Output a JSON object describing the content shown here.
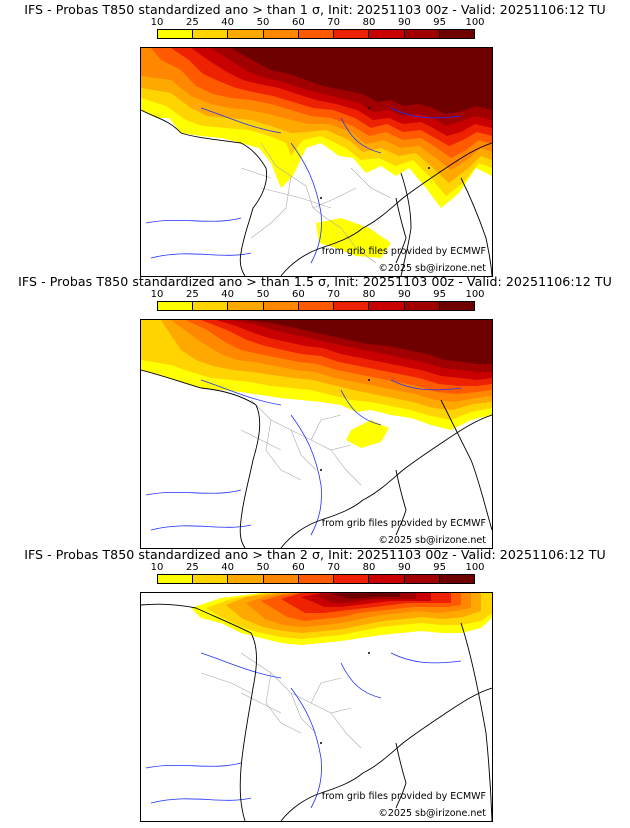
{
  "panels": [
    {
      "title": "IFS - Probas T850  standardized ano > than 1 σ, Init: 20251103 00z - Valid: 20251106:12 TU",
      "credit_source": "from grib files provided by ECMWF",
      "credit_copyright": "©2025 sb@irizone.net",
      "threshold_sigma": 1
    },
    {
      "title": "IFS - Probas T850  standardized ano > than 1.5 σ, Init: 20251103 00z - Valid: 20251106:12 TU",
      "credit_source": "from grib files provided by ECMWF",
      "credit_copyright": "©2025 sb@irizone.net",
      "threshold_sigma": 1.5
    },
    {
      "title": "IFS - Probas T850  standardized ano > than 2 σ, Init: 20251103 00z - Valid: 20251106:12 TU",
      "credit_source": "from grib files provided by ECMWF",
      "credit_copyright": "©2025 sb@irizone.net",
      "threshold_sigma": 2
    }
  ],
  "legend": {
    "ticks": [
      "10",
      "25",
      "40",
      "50",
      "60",
      "70",
      "80",
      "90",
      "95",
      "100"
    ],
    "colors": [
      "#ffff00",
      "#ffd400",
      "#ffa800",
      "#ff8800",
      "#ff5a00",
      "#ee2200",
      "#c80000",
      "#a00000",
      "#6e0000"
    ]
  },
  "overlay_colors": {
    "coast": "#000000",
    "rivers": "#2030ff",
    "borders": "#aaaaaa"
  }
}
